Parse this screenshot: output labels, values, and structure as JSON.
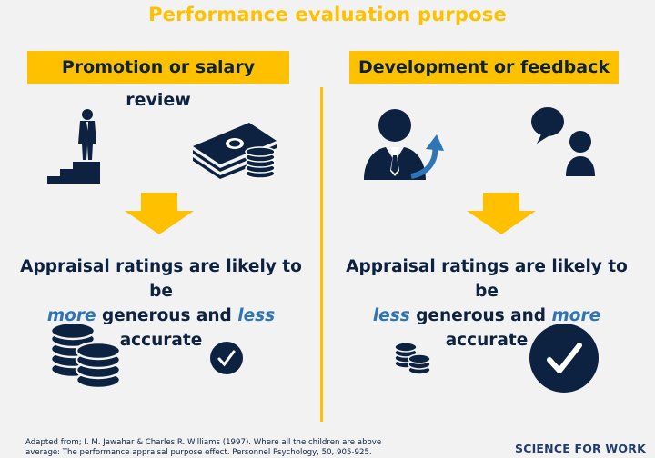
{
  "title": "Performance evaluation purpose",
  "left": {
    "heading": "Promotion or salary review",
    "line1": "Appraisal ratings are likely to be",
    "word1": "more",
    "mid": " generous and ",
    "word2": "less",
    "tail": " accurate"
  },
  "right": {
    "heading": "Development or feedback",
    "line1": "Appraisal ratings are likely to be",
    "word1": "less",
    "mid": " generous and ",
    "word2": "more",
    "tail": " accurate"
  },
  "footnote": "Adapted from; I. M. Jawahar & Charles R. Williams (1997). Where all the children are above average: The performance appraisal purpose effect. Personnel Psychology, 50, 905-925.",
  "brand": "SCIENCE FOR WORK",
  "colors": {
    "accent": "#ffc000",
    "navy": "#0d2240",
    "emphasis": "#2e75b6"
  },
  "icons": [
    "person-on-stairs-icon",
    "money-stack-icon",
    "arrow-down-icon",
    "manager-growth-icon",
    "speech-bubble-person-icon",
    "coin-stack-icon",
    "checkmark-badge-icon"
  ]
}
